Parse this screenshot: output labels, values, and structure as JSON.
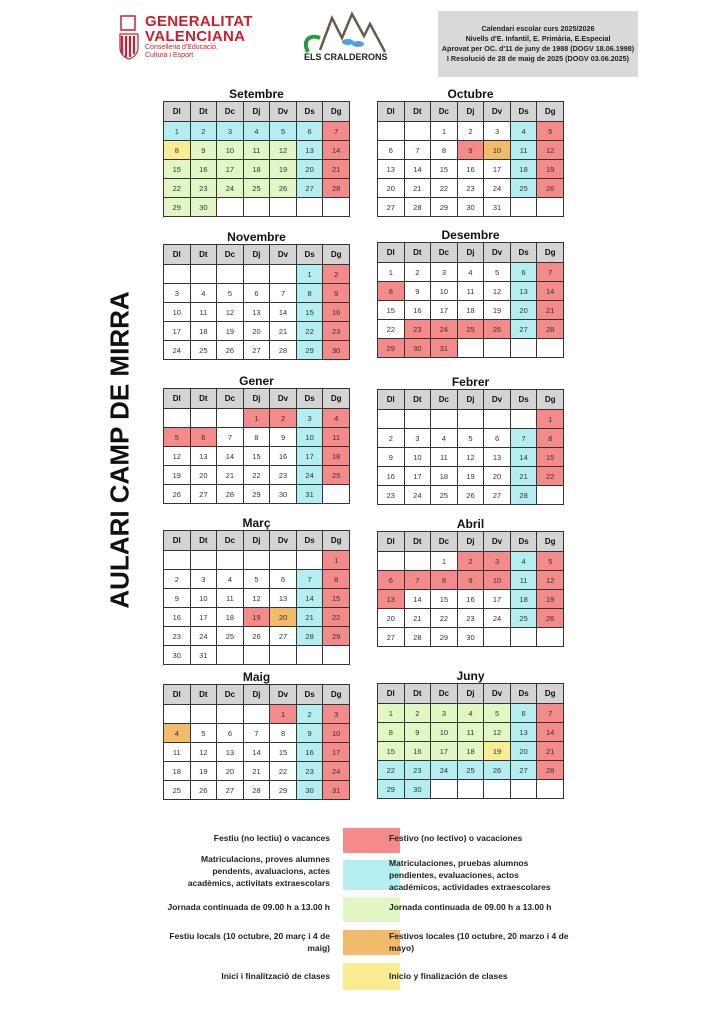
{
  "header": {
    "gva_logo": {
      "line1": "GENERALITAT",
      "line2": "VALENCIANA",
      "sub1": "Conselleria d'Educació,",
      "sub2": "Cultura i Esport"
    },
    "school_logo": {
      "text": "ELS CRALDERONS"
    },
    "info_lines": [
      "Calendari escolar curs 2025/2026",
      "Nivells d'E. Infantil, E. Primària, E.Especial",
      "Aprovat per OC. d'11 de juny de 1988 (DOGV 18.06.1998)",
      "I Resolució de 28 de maig de 2025 (DOGV 03.06.2025)"
    ]
  },
  "side_title": "AULARI CAMP DE MIRRA",
  "weekdays": [
    "Dl",
    "Dt",
    "Dc",
    "Dj",
    "Dv",
    "Ds",
    "Dg"
  ],
  "colors": {
    "r": "#f58a8a",
    "c": "#b4eef0",
    "g": "#e3f7c5",
    "o": "#f2bb6b",
    "y": "#fbeb92",
    "header": "#d4d4d4"
  },
  "months": [
    {
      "name": "Setembre",
      "start": 0,
      "days": 30,
      "colors": {
        "1": "c",
        "2": "c",
        "3": "c",
        "4": "c",
        "5": "c",
        "6": "c",
        "7": "r",
        "8": "y",
        "9": "g",
        "10": "g",
        "11": "g",
        "12": "g",
        "13": "c",
        "14": "r",
        "15": "g",
        "16": "g",
        "17": "g",
        "18": "g",
        "19": "g",
        "20": "c",
        "21": "r",
        "22": "g",
        "23": "g",
        "24": "g",
        "25": "g",
        "26": "g",
        "27": "c",
        "28": "r",
        "29": "g",
        "30": "g"
      }
    },
    {
      "name": "Octubre",
      "start": 2,
      "days": 31,
      "colors": {
        "4": "c",
        "5": "r",
        "9": "r",
        "10": "o",
        "11": "c",
        "12": "r",
        "18": "c",
        "19": "r",
        "25": "c",
        "26": "r"
      }
    },
    {
      "name": "Novembre",
      "start": 5,
      "days": 30,
      "colors": {
        "1": "c",
        "2": "r",
        "8": "c",
        "9": "r",
        "15": "c",
        "16": "r",
        "22": "c",
        "23": "r",
        "29": "c",
        "30": "r"
      }
    },
    {
      "name": "Desembre",
      "start": 0,
      "days": 31,
      "colors": {
        "6": "c",
        "7": "r",
        "8": "r",
        "13": "c",
        "14": "r",
        "20": "c",
        "21": "r",
        "23": "r",
        "24": "r",
        "25": "r",
        "26": "r",
        "27": "c",
        "28": "r",
        "29": "r",
        "30": "r",
        "31": "r"
      }
    },
    {
      "name": "Gener",
      "start": 3,
      "days": 31,
      "colors": {
        "1": "r",
        "2": "r",
        "3": "c",
        "4": "r",
        "5": "r",
        "6": "r",
        "10": "c",
        "11": "r",
        "17": "c",
        "18": "r",
        "24": "c",
        "25": "r",
        "31": "c"
      }
    },
    {
      "name": "Febrer",
      "start": 6,
      "days": 28,
      "colors": {
        "1": "r",
        "7": "c",
        "8": "r",
        "14": "c",
        "15": "r",
        "21": "c",
        "22": "r",
        "28": "c"
      }
    },
    {
      "name": "Març",
      "start": 6,
      "days": 31,
      "colors": {
        "1": "r",
        "7": "c",
        "8": "r",
        "14": "c",
        "15": "r",
        "19": "r",
        "20": "o",
        "21": "c",
        "22": "r",
        "28": "c",
        "29": "r"
      }
    },
    {
      "name": "Abril",
      "start": 2,
      "days": 30,
      "colors": {
        "2": "r",
        "3": "r",
        "4": "c",
        "5": "r",
        "6": "r",
        "7": "r",
        "8": "r",
        "9": "r",
        "10": "r",
        "11": "c",
        "12": "r",
        "13": "r",
        "18": "c",
        "19": "r",
        "25": "c",
        "26": "r"
      }
    },
    {
      "name": "Maig",
      "start": 4,
      "days": 31,
      "colors": {
        "1": "r",
        "2": "c",
        "3": "r",
        "4": "o",
        "9": "c",
        "10": "r",
        "16": "c",
        "17": "r",
        "23": "c",
        "24": "r",
        "30": "c",
        "31": "r"
      }
    },
    {
      "name": "Juny",
      "start": 0,
      "days": 30,
      "colors": {
        "1": "g",
        "2": "g",
        "3": "g",
        "4": "g",
        "5": "g",
        "6": "c",
        "7": "r",
        "8": "g",
        "9": "g",
        "10": "g",
        "11": "g",
        "12": "g",
        "13": "c",
        "14": "r",
        "15": "g",
        "16": "g",
        "17": "g",
        "18": "g",
        "19": "y",
        "20": "c",
        "21": "r",
        "22": "c",
        "23": "c",
        "24": "c",
        "25": "c",
        "26": "c",
        "27": "c",
        "28": "r",
        "29": "c",
        "30": "c"
      }
    }
  ],
  "legend": [
    {
      "color": "r",
      "val": "Festiu (no lectiu) o vacances",
      "es": "Festivo (no lectivo) o vacaciones"
    },
    {
      "color": "c",
      "val": "Matriculacions, proves alumnes pendents, avaluacions, actes acadèmics, activitats extraescolars",
      "es": "Matriculaciones, pruebas alumnos pendientes, evaluaciones, actos académicos, actividades extraescolares"
    },
    {
      "color": "g",
      "val": "Jornada continuada de 09.00 h a 13.00 h",
      "es": "Jornada continuada de 09.00 h a 13.00 h"
    },
    {
      "color": "o",
      "val": "Festiu locals (10 octubre, 20 març i 4 de maig)",
      "es": "Festivos locales (10 octubre, 20 marzo i 4 de mayo)"
    },
    {
      "color": "y",
      "val": "Inici i finalització de clases",
      "es": "Inicio y finalización de clases"
    }
  ]
}
